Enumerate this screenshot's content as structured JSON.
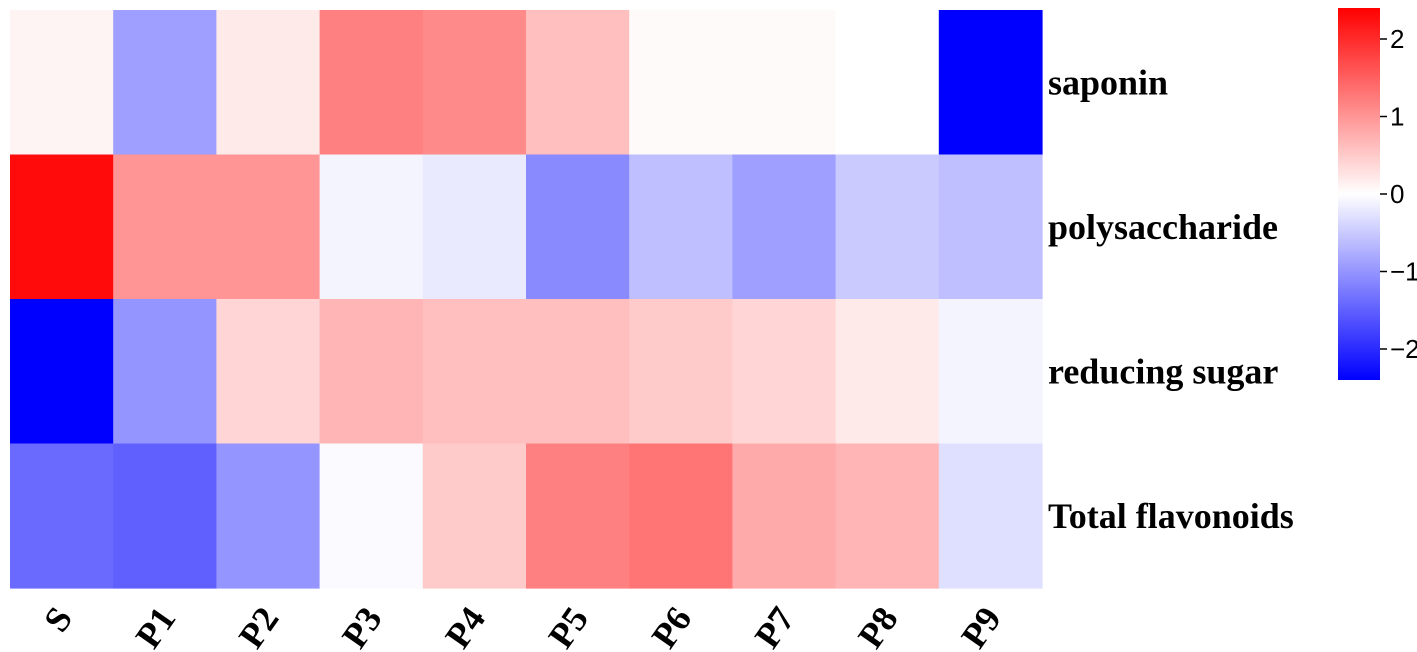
{
  "chart_data": {
    "type": "heatmap",
    "columns": [
      "S",
      "P1",
      "P2",
      "P3",
      "P4",
      "P5",
      "P6",
      "P7",
      "P8",
      "P9"
    ],
    "rows": [
      "saponin",
      "polysaccharide",
      "reducing sugar",
      "Total flavonoids"
    ],
    "values": [
      [
        0.1,
        -0.9,
        0.2,
        1.2,
        1.1,
        0.6,
        0.05,
        0.05,
        0.0,
        -2.4
      ],
      [
        2.3,
        1.0,
        1.0,
        -0.1,
        -0.2,
        -1.1,
        -0.6,
        -0.9,
        -0.5,
        -0.6
      ],
      [
        -2.4,
        -1.0,
        0.4,
        0.7,
        0.6,
        0.6,
        0.5,
        0.4,
        0.2,
        -0.1
      ],
      [
        -1.4,
        -1.5,
        -1.0,
        -0.05,
        0.5,
        1.2,
        1.3,
        0.8,
        0.7,
        -0.3
      ]
    ],
    "colorbar": {
      "range": [
        -2.4,
        2.4
      ],
      "ticks": [
        2,
        1,
        0,
        -1,
        -2
      ],
      "tick_labels": [
        "2",
        "1",
        "0",
        "−1",
        "−2"
      ],
      "colors": {
        "low": "#0000ff",
        "mid": "#ffffff",
        "high": "#ff0000"
      }
    }
  }
}
